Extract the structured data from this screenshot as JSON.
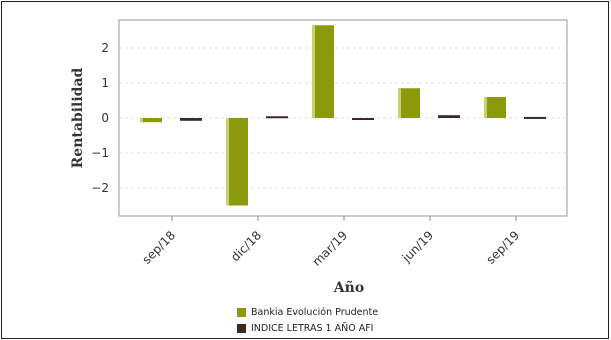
{
  "chart_data": {
    "type": "bar",
    "categories": [
      "sep/18",
      "dic/18",
      "mar/19",
      "jun/19",
      "sep/19"
    ],
    "series": [
      {
        "name": "Bankia Evolución Prudente",
        "values": [
          -0.12,
          -2.5,
          2.65,
          0.85,
          0.6
        ],
        "color": "#8a9a0a"
      },
      {
        "name": "INDICE LETRAS 1 AÑO AFI",
        "values": [
          -0.08,
          0.05,
          -0.05,
          0.08,
          0.03
        ],
        "color": "#3d2a22"
      }
    ],
    "xlabel": "Año",
    "ylabel": "Rentabilidad",
    "ylim": [
      -2.8,
      2.8
    ],
    "yticks": [
      -2,
      -1,
      0,
      1,
      2
    ],
    "grid": true,
    "legend_position": "bottom"
  }
}
